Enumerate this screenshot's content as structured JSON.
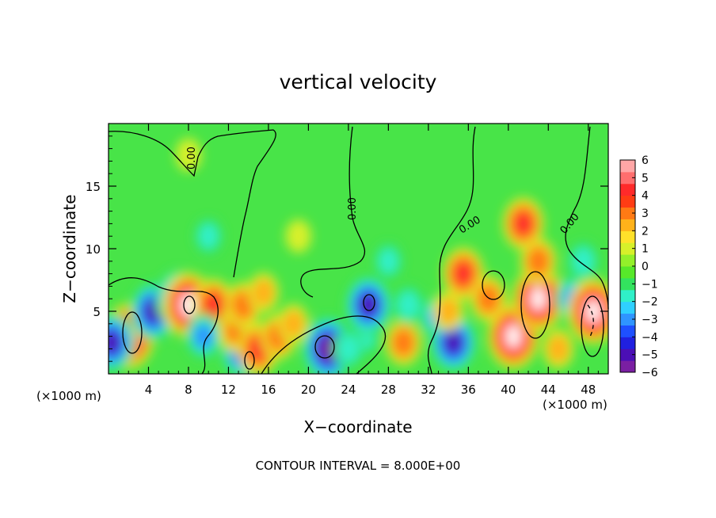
{
  "chart_data": {
    "type": "heatmap",
    "title": "vertical velocity",
    "xlabel": "X−coordinate",
    "ylabel": "Z−coordinate",
    "x_unit_left": "(×1000 m)",
    "x_unit_right": "(×1000 m)",
    "xlim": [
      0,
      50
    ],
    "ylim": [
      0,
      20
    ],
    "x_ticks": [
      "4",
      "8",
      "12",
      "16",
      "20",
      "24",
      "28",
      "32",
      "36",
      "40",
      "44",
      "48"
    ],
    "y_ticks": [
      "5",
      "10",
      "15"
    ],
    "colorbar": {
      "ticks": [
        "6",
        "5",
        "4",
        "3",
        "2",
        "1",
        "0",
        "−1",
        "−2",
        "−3",
        "−4",
        "−5",
        "−6"
      ],
      "range": [
        -6,
        6
      ],
      "colors": [
        "#7a1fa2",
        "#4b0fb5",
        "#2020e0",
        "#1e50ff",
        "#2f95ff",
        "#2fd0ff",
        "#30f0c8",
        "#33e35e",
        "#57e82a",
        "#93f02a",
        "#d7f02a",
        "#ffe12a",
        "#ffb21a",
        "#ff7a14",
        "#ff3c14",
        "#ff2a2a",
        "#ff6e6e",
        "#ffa6a6"
      ]
    },
    "contour_labels": [
      "0.00",
      "0.00",
      "0.00",
      "0.00"
    ],
    "contour_interval_text": "CONTOUR INTERVAL = 8.000E+00",
    "features": [
      {
        "x": 2.0,
        "z": 3.0,
        "w": 6.0
      },
      {
        "x": 0.3,
        "z": 2.5,
        "w": -5.0
      },
      {
        "x": 4.5,
        "z": 5.0,
        "w": -5.0
      },
      {
        "x": 7.0,
        "z": 6.0,
        "w": -5.0
      },
      {
        "x": 8.0,
        "z": 5.5,
        "w": 6.0
      },
      {
        "x": 10.5,
        "z": 5.5,
        "w": 4.0
      },
      {
        "x": 9.5,
        "z": 3.0,
        "w": -3.0
      },
      {
        "x": 13.5,
        "z": 2.0,
        "w": -5.0
      },
      {
        "x": 12.8,
        "z": 3.5,
        "w": 3.0
      },
      {
        "x": 13.5,
        "z": 5.5,
        "w": 3.0
      },
      {
        "x": 15.0,
        "z": 2.0,
        "w": 4.0
      },
      {
        "x": 17.0,
        "z": 3.0,
        "w": 3.0
      },
      {
        "x": 18.5,
        "z": 4.0,
        "w": 2.0
      },
      {
        "x": 15.5,
        "z": 6.5,
        "w": 2.0
      },
      {
        "x": 22.0,
        "z": 2.0,
        "w": -6.0
      },
      {
        "x": 25.5,
        "z": 3.0,
        "w": -2.0
      },
      {
        "x": 26.0,
        "z": 5.5,
        "w": -5.0
      },
      {
        "x": 29.5,
        "z": 2.5,
        "w": 3.0
      },
      {
        "x": 30.0,
        "z": 5.5,
        "w": -2.0
      },
      {
        "x": 33.0,
        "z": 4.5,
        "w": -3.0
      },
      {
        "x": 34.5,
        "z": 2.5,
        "w": -5.0
      },
      {
        "x": 35.5,
        "z": 8.0,
        "w": 4.0
      },
      {
        "x": 34.0,
        "z": 5.0,
        "w": 2.0
      },
      {
        "x": 40.5,
        "z": 3.0,
        "w": 6.0
      },
      {
        "x": 43.0,
        "z": 6.0,
        "w": 6.0
      },
      {
        "x": 41.5,
        "z": 12.0,
        "w": 4.0
      },
      {
        "x": 43.0,
        "z": 9.0,
        "w": 3.0
      },
      {
        "x": 38.0,
        "z": 6.0,
        "w": 3.0
      },
      {
        "x": 45.0,
        "z": 2.0,
        "w": 2.0
      },
      {
        "x": 46.5,
        "z": 6.0,
        "w": -3.0
      },
      {
        "x": 48.5,
        "z": 5.0,
        "w": 6.0
      },
      {
        "x": 47.5,
        "z": 9.0,
        "w": -2.0
      },
      {
        "x": 10.0,
        "z": 11.0,
        "w": -1.5
      },
      {
        "x": 19.0,
        "z": 11.0,
        "w": 1.0
      },
      {
        "x": 28.0,
        "z": 9.0,
        "w": -1.5
      },
      {
        "x": 8.0,
        "z": 17.5,
        "w": 1.0
      },
      {
        "x": 24.0,
        "z": 2.0,
        "w": -2.0
      }
    ]
  }
}
